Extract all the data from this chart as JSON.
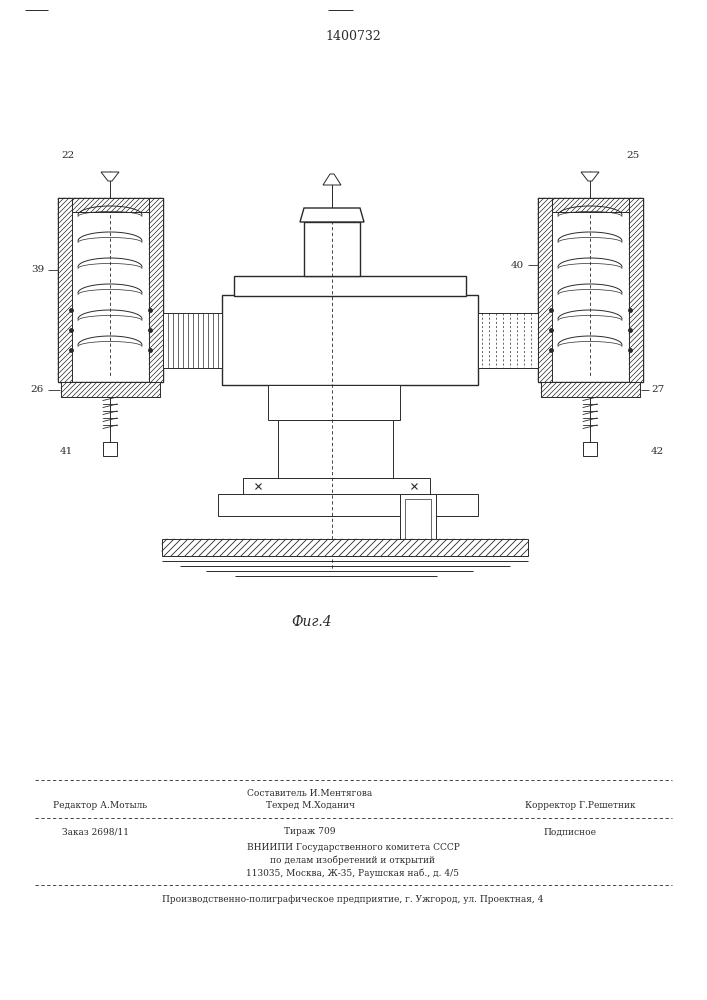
{
  "title": "1400732",
  "fig_label": "Фиг.4",
  "bg_color": "#ffffff",
  "line_color": "#2a2a2a",
  "footer": {
    "line1_center": "Составитель И.Ментягова",
    "line1_left": "Редактор А.Мотыль",
    "line1_right": "Корректор Г.Решетник",
    "line2_center": "Техред М.Ходанич",
    "line3_left": "Заказ 2698/11",
    "line3_center": "Тираж 709",
    "line3_right": "Подписное",
    "line4": "ВНИИПИ Государственного комитета СССР",
    "line5": "по делам изобретений и открытий",
    "line6": "113035, Москва, Ж-35, Раушская наб., д. 4/5",
    "line7": "Производственно-полиграфическое предприятие, г. Ужгород, ул. Проектная, 4"
  }
}
